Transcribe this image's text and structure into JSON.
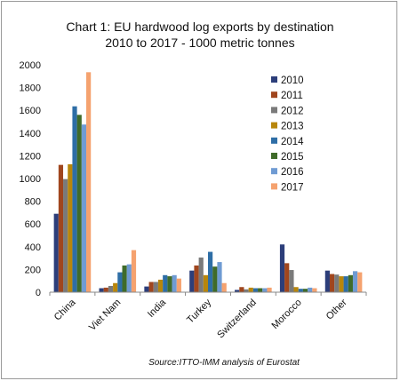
{
  "chart_data": {
    "type": "bar",
    "title": "Chart 1: EU hardwood log exports by destination",
    "subtitle": "2010 to 2017 - 1000 metric tonnes",
    "categories": [
      "China",
      "Viet Nam",
      "India",
      "Turkey",
      "Switzerland",
      "Morocco",
      "Other"
    ],
    "series": [
      {
        "name": "2010",
        "color": "#2c3e7a",
        "values": [
          690,
          35,
          50,
          190,
          20,
          420,
          190
        ]
      },
      {
        "name": "2011",
        "color": "#a0461e",
        "values": [
          1120,
          40,
          90,
          235,
          45,
          255,
          160
        ]
      },
      {
        "name": "2012",
        "color": "#7a7a7a",
        "values": [
          995,
          55,
          90,
          305,
          25,
          195,
          155
        ]
      },
      {
        "name": "2013",
        "color": "#b8860b",
        "values": [
          1125,
          80,
          110,
          150,
          40,
          45,
          140
        ]
      },
      {
        "name": "2014",
        "color": "#2e6ea6",
        "values": [
          1635,
          175,
          150,
          355,
          35,
          30,
          140
        ]
      },
      {
        "name": "2015",
        "color": "#3f6b2a",
        "values": [
          1560,
          235,
          140,
          225,
          35,
          30,
          150
        ]
      },
      {
        "name": "2016",
        "color": "#6f9bd3",
        "values": [
          1475,
          245,
          150,
          265,
          35,
          40,
          185
        ]
      },
      {
        "name": "2017",
        "color": "#f5a26f",
        "values": [
          1935,
          370,
          120,
          80,
          40,
          35,
          175
        ]
      }
    ],
    "ylim": [
      0,
      2000
    ],
    "yticks": [
      0,
      200,
      400,
      600,
      800,
      1000,
      1200,
      1400,
      1600,
      1800,
      2000
    ],
    "xlabel": "",
    "ylabel": "",
    "legend_position": "top-right",
    "grid": false,
    "source": "Source:ITTO-IMM analysis of Eurostat"
  }
}
